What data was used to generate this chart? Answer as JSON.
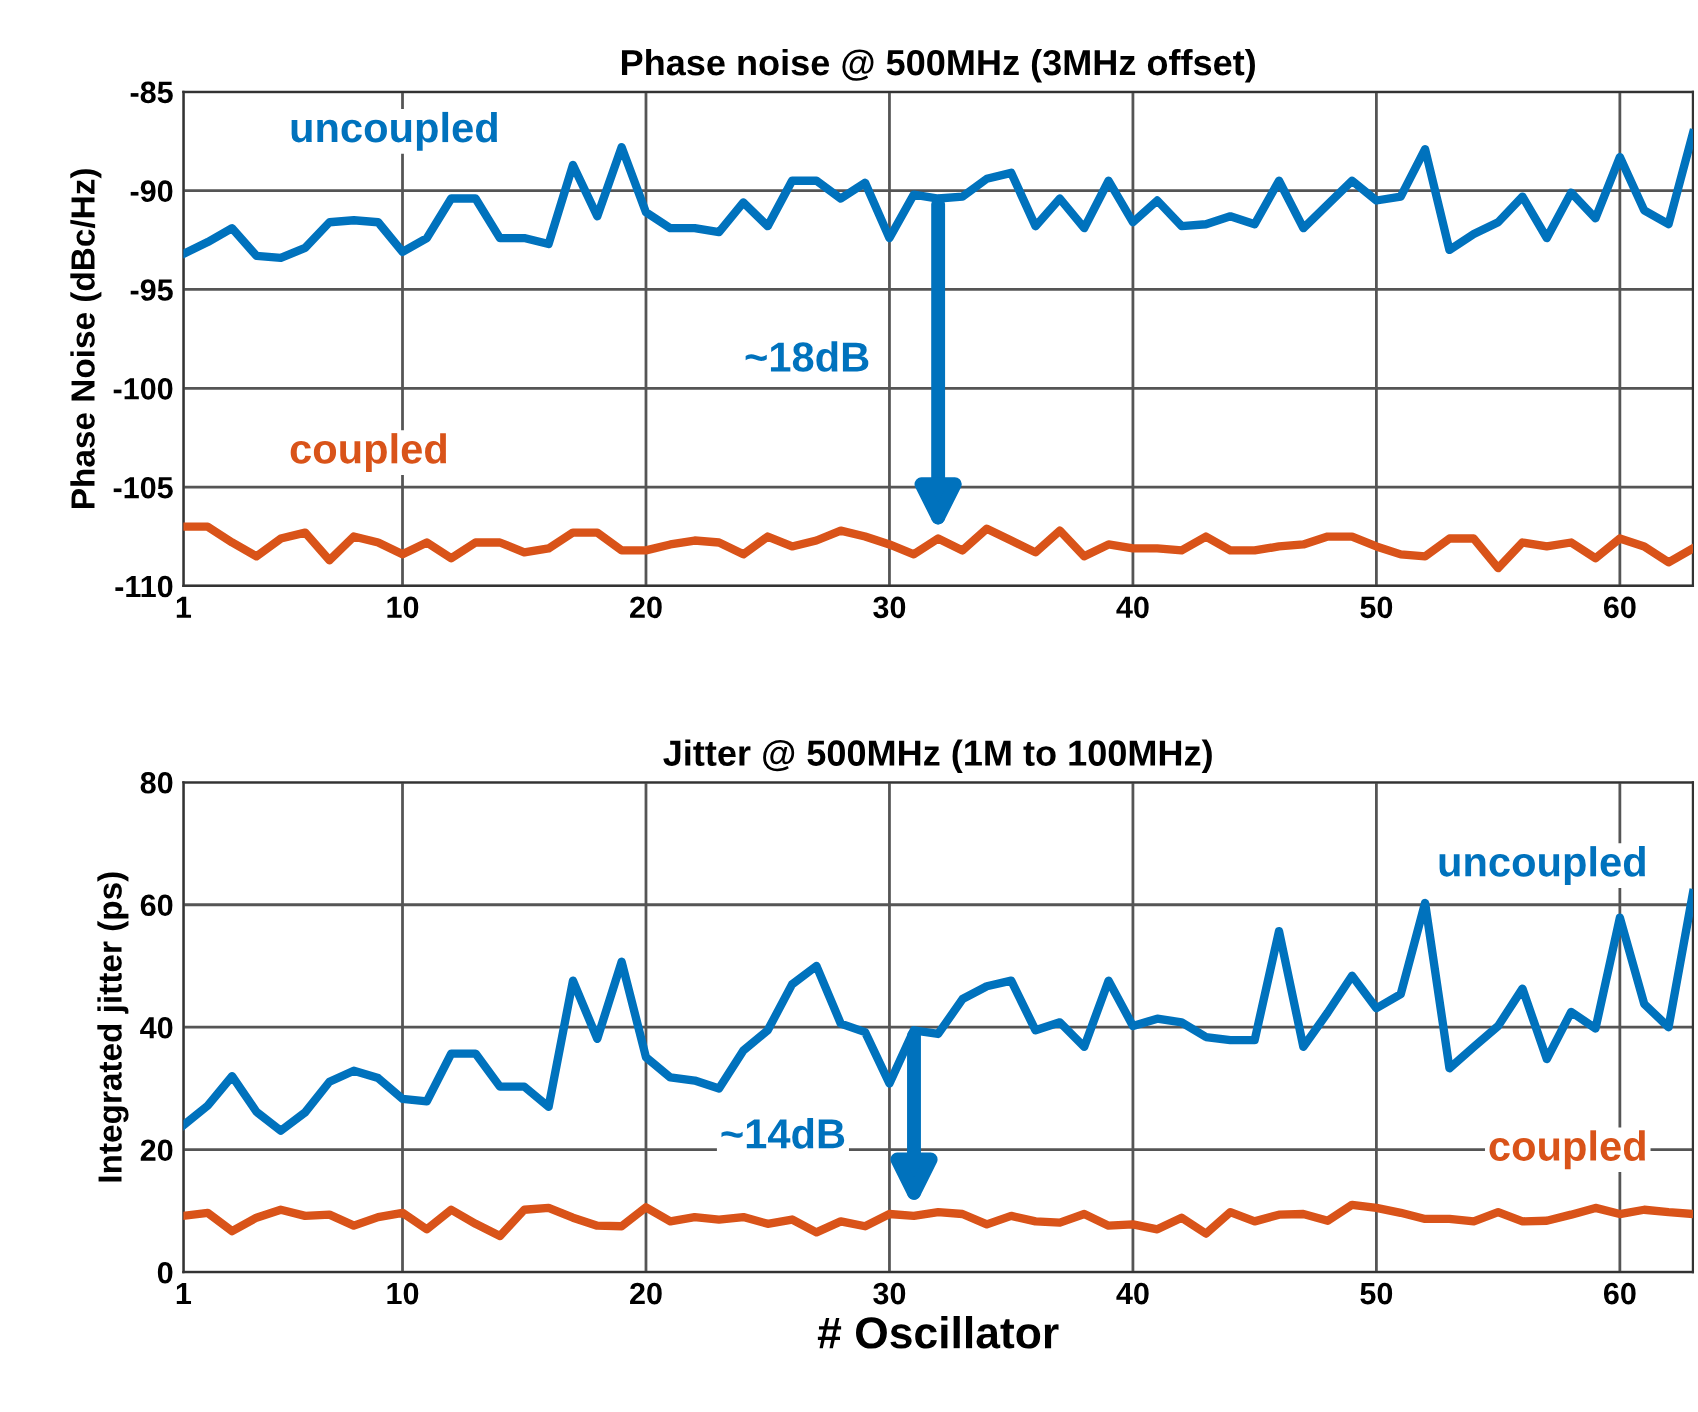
{
  "chart_data": [
    {
      "type": "line",
      "title": "Phase noise @ 500MHz (3MHz offset)",
      "ylabel": "Phase Noise (dBc/Hz)",
      "x": [
        1,
        2,
        3,
        4,
        5,
        6,
        7,
        8,
        9,
        10,
        11,
        12,
        13,
        14,
        15,
        16,
        17,
        18,
        19,
        20,
        21,
        22,
        23,
        24,
        25,
        26,
        27,
        28,
        29,
        30,
        31,
        32,
        33,
        34,
        35,
        36,
        37,
        38,
        39,
        40,
        41,
        42,
        43,
        44,
        45,
        46,
        47,
        48,
        49,
        50,
        51,
        52,
        53,
        54,
        55,
        56,
        57,
        58,
        59,
        60,
        61,
        62,
        63
      ],
      "series": [
        {
          "name": "uncoupled",
          "color": "#0072bd",
          "values": [
            -93.2,
            -92.6,
            -91.9,
            -93.3,
            -93.4,
            -92.9,
            -91.6,
            -91.5,
            -91.6,
            -93.1,
            -92.4,
            -90.4,
            -90.4,
            -92.4,
            -92.4,
            -92.7,
            -88.7,
            -91.3,
            -87.8,
            -91.1,
            -91.9,
            -91.9,
            -92.1,
            -90.6,
            -91.8,
            -89.5,
            -89.5,
            -90.4,
            -89.6,
            -92.4,
            -90.2,
            -90.4,
            -90.3,
            -89.4,
            -89.1,
            -91.8,
            -90.4,
            -91.9,
            -89.5,
            -91.6,
            -90.5,
            -91.8,
            -91.7,
            -91.3,
            -91.7,
            -89.5,
            -91.9,
            -90.7,
            -89.5,
            -90.5,
            -90.3,
            -87.9,
            -93.0,
            -92.2,
            -91.6,
            -90.3,
            -92.4,
            -90.1,
            -91.4,
            -88.3,
            -91.0,
            -91.7,
            -87.1
          ]
        },
        {
          "name": "coupled",
          "color": "#d95319",
          "values": [
            -107.0,
            -107.0,
            -107.8,
            -108.5,
            -107.6,
            -107.3,
            -108.7,
            -107.5,
            -107.8,
            -108.4,
            -107.8,
            -108.6,
            -107.8,
            -107.8,
            -108.3,
            -108.1,
            -107.3,
            -107.3,
            -108.2,
            -108.2,
            -107.9,
            -107.7,
            -107.8,
            -108.4,
            -107.5,
            -108.0,
            -107.7,
            -107.2,
            -107.5,
            -107.9,
            -108.4,
            -107.6,
            -108.2,
            -107.1,
            -107.7,
            -108.3,
            -107.2,
            -108.5,
            -107.9,
            -108.1,
            -108.1,
            -108.2,
            -107.5,
            -108.2,
            -108.2,
            -108.0,
            -107.9,
            -107.5,
            -107.5,
            -108.0,
            -108.4,
            -108.5,
            -107.6,
            -107.6,
            -109.1,
            -107.8,
            -108.0,
            -107.8,
            -108.6,
            -107.6,
            -108.0,
            -108.8,
            -108.1
          ]
        }
      ],
      "annotations": [
        "~18dB"
      ],
      "xlim": [
        1,
        63
      ],
      "xticks": [
        1,
        10,
        20,
        30,
        40,
        50,
        60
      ],
      "ylim": [
        -110,
        -85
      ],
      "yticks": [
        -110,
        -105,
        -100,
        -95,
        -90,
        -85
      ],
      "grid": true,
      "legend": false,
      "line_style": "solid",
      "marker": "none"
    },
    {
      "type": "line",
      "title": "Jitter @ 500MHz (1M to 100MHz)",
      "ylabel": "Integrated jitter (ps)",
      "xlabel": "# Oscillator",
      "x": [
        1,
        2,
        3,
        4,
        5,
        6,
        7,
        8,
        9,
        10,
        11,
        12,
        13,
        14,
        15,
        16,
        17,
        18,
        19,
        20,
        21,
        22,
        23,
        24,
        25,
        26,
        27,
        28,
        29,
        30,
        31,
        32,
        33,
        34,
        35,
        36,
        37,
        38,
        39,
        40,
        41,
        42,
        43,
        44,
        45,
        46,
        47,
        48,
        49,
        50,
        51,
        52,
        53,
        54,
        55,
        56,
        57,
        58,
        59,
        60,
        61,
        62,
        63
      ],
      "series": [
        {
          "name": "uncoupled",
          "color": "#0072bd",
          "values": [
            24.0,
            27.2,
            32.0,
            26.2,
            23.1,
            26.1,
            31.1,
            32.9,
            31.7,
            28.3,
            27.9,
            35.7,
            35.7,
            30.3,
            30.3,
            27.0,
            47.6,
            38.1,
            50.7,
            35.1,
            31.8,
            31.3,
            30.0,
            36.2,
            39.5,
            47.0,
            50.0,
            40.6,
            39.2,
            30.8,
            39.5,
            38.9,
            44.6,
            46.7,
            47.6,
            39.5,
            40.8,
            36.8,
            47.6,
            40.2,
            41.4,
            40.8,
            38.4,
            37.9,
            37.9,
            55.7,
            36.8,
            42.4,
            48.4,
            43.1,
            45.4,
            60.3,
            33.3,
            36.8,
            40.2,
            46.3,
            34.8,
            42.5,
            39.8,
            57.9,
            43.8,
            40.0,
            61.9
          ]
        },
        {
          "name": "coupled",
          "color": "#d95319",
          "values": [
            9.2,
            9.7,
            6.7,
            8.9,
            10.2,
            9.2,
            9.4,
            7.6,
            9.0,
            9.7,
            7.0,
            10.2,
            7.9,
            5.9,
            10.2,
            10.5,
            8.9,
            7.6,
            7.5,
            10.6,
            8.3,
            9.0,
            8.6,
            9.0,
            7.9,
            8.6,
            6.5,
            8.3,
            7.5,
            9.5,
            9.2,
            9.8,
            9.5,
            7.8,
            9.2,
            8.3,
            8.1,
            9.5,
            7.6,
            7.8,
            7.0,
            8.9,
            6.3,
            9.8,
            8.3,
            9.4,
            9.5,
            8.4,
            11.0,
            10.5,
            9.7,
            8.7,
            8.7,
            8.3,
            9.8,
            8.3,
            8.4,
            9.4,
            10.5,
            9.5,
            10.2,
            9.8,
            9.5
          ]
        }
      ],
      "annotations": [
        "~14dB"
      ],
      "xlim": [
        1,
        63
      ],
      "xticks": [
        1,
        10,
        20,
        30,
        40,
        50,
        60
      ],
      "ylim": [
        0,
        80
      ],
      "yticks": [
        0,
        20,
        40,
        60,
        80
      ],
      "grid": true,
      "legend": false,
      "line_style": "solid",
      "marker": "none"
    }
  ]
}
